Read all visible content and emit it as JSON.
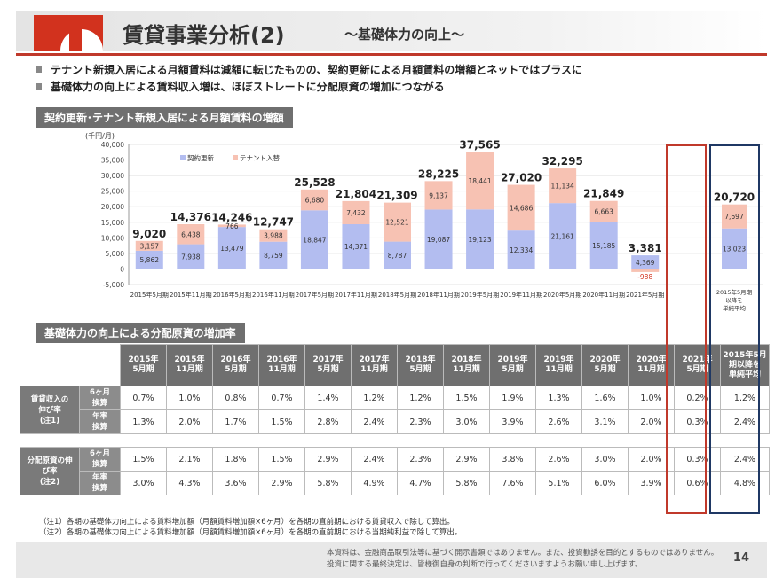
{
  "header": {
    "title": "賃貸事業分析(2)",
    "subtitle": "～基礎体力の向上～",
    "logo_color": "#d2321e"
  },
  "bullets": [
    "テナント新規入居による月額賃料は減額に転じたものの、契約更新による月額賃料の増額とネットではプラスに",
    "基礎体力の向上による賃料収入増は、ほぼストレートに分配原資の増加につながる"
  ],
  "section1_title": "契約更新･テナント新規入居による月額賃料の増額",
  "section2_title": "基礎体力の向上による分配原資の増加率",
  "chart_data": {
    "type": "bar",
    "stacked": true,
    "ylabel": "(千円/月)",
    "ylim": [
      -5000,
      40000
    ],
    "yticks": [
      -5000,
      0,
      5000,
      10000,
      15000,
      20000,
      25000,
      30000,
      35000,
      40000
    ],
    "ytick_labels": [
      "-5,000",
      "0",
      "5,000",
      "10,000",
      "15,000",
      "20,000",
      "25,000",
      "30,000",
      "35,000",
      "40,000"
    ],
    "categories": [
      "2015年5月期",
      "2015年11月期",
      "2016年5月期",
      "2016年11月期",
      "2017年5月期",
      "2017年11月期",
      "2018年5月期",
      "2018年11月期",
      "2019年5月期",
      "2019年11月期",
      "2020年5月期",
      "2020年11月期",
      "2021年5月期"
    ],
    "series": [
      {
        "name": "契約更新",
        "color": "#b3bdf0",
        "values": [
          5862,
          7938,
          13479,
          8759,
          18847,
          14371,
          8787,
          19087,
          19123,
          12334,
          21161,
          15185,
          4369
        ],
        "labels": [
          "5,862",
          "7,938",
          "13,479",
          "8,759",
          "18,847",
          "14,371",
          "8,787",
          "19,087",
          "19,123",
          "12,334",
          "21,161",
          "15,185",
          "4,369"
        ]
      },
      {
        "name": "テナント入替",
        "color": "#f7c2b3",
        "values": [
          3157,
          6438,
          766,
          3988,
          6680,
          7432,
          12521,
          9137,
          18441,
          14686,
          11134,
          6663,
          -988
        ],
        "labels": [
          "3,157",
          "6,438",
          "766",
          "3,988",
          "6,680",
          "7,432",
          "12,521",
          "9,137",
          "18,441",
          "14,686",
          "11,134",
          "6,663",
          "-988"
        ]
      }
    ],
    "totals": [
      "9,020",
      "14,376",
      "14,246",
      "12,747",
      "25,528",
      "21,804",
      "21,309",
      "28,225",
      "37,565",
      "27,020",
      "32,295",
      "21,849",
      "3,381"
    ],
    "average": {
      "label_lines": [
        "2015年5月期",
        "以降を",
        "単純平均"
      ],
      "renewal": 13023,
      "renewal_label": "13,023",
      "tenant": 7697,
      "tenant_label": "7,697",
      "total_label": "20,720"
    },
    "highlight_colors": {
      "recent": "#c0392b",
      "average": "#1f3864"
    }
  },
  "table": {
    "headers": [
      "2015年\n5月期",
      "2015年\n11月期",
      "2016年\n5月期",
      "2016年\n11月期",
      "2017年\n5月期",
      "2017年\n11月期",
      "2018年\n5月期",
      "2018年\n11月期",
      "2019年\n5月期",
      "2019年\n11月期",
      "2020年\n5月期",
      "2020年\n11月期",
      "2021年\n5月期",
      "2015年5月\n期以降を\n単純平均"
    ],
    "groups": [
      {
        "label": "賃貸収入の\n伸び率\n(注1)",
        "rows": [
          {
            "sub": "6ヶ月\n換算",
            "values": [
              "0.7%",
              "1.0%",
              "0.8%",
              "0.7%",
              "1.4%",
              "1.2%",
              "1.2%",
              "1.5%",
              "1.9%",
              "1.3%",
              "1.6%",
              "1.0%",
              "0.2%",
              "1.2%"
            ]
          },
          {
            "sub": "年率\n換算",
            "values": [
              "1.3%",
              "2.0%",
              "1.7%",
              "1.5%",
              "2.8%",
              "2.4%",
              "2.3%",
              "3.0%",
              "3.9%",
              "2.6%",
              "3.1%",
              "2.0%",
              "0.3%",
              "2.4%"
            ]
          }
        ]
      },
      {
        "label": "分配原資の伸\nび率\n(注2)",
        "rows": [
          {
            "sub": "6ヶ月\n換算",
            "values": [
              "1.5%",
              "2.1%",
              "1.8%",
              "1.5%",
              "2.9%",
              "2.4%",
              "2.3%",
              "2.9%",
              "3.8%",
              "2.6%",
              "3.0%",
              "2.0%",
              "0.3%",
              "2.4%"
            ]
          },
          {
            "sub": "年率\n換算",
            "values": [
              "3.0%",
              "4.3%",
              "3.6%",
              "2.9%",
              "5.8%",
              "4.9%",
              "4.7%",
              "5.8%",
              "7.6%",
              "5.1%",
              "6.0%",
              "3.9%",
              "0.6%",
              "4.8%"
            ]
          }
        ]
      }
    ]
  },
  "notes": [
    "（注1）各期の基礎体力向上による賃料増加額（月額賃料増加額×6ヶ月）を各期の直前期における賃貸収入で除して算出。",
    "（注2）各期の基礎体力向上による賃料増加額（月額賃料増加額×6ヶ月）を各期の直前期における当期純利益で除して算出。"
  ],
  "footer": {
    "disclaimer_1": "本資料は、金融商品取引法等に基づく開示書類ではありません。また、投資勧誘を目的とするものではありません。",
    "disclaimer_2": "投資に関する最終決定は、皆様御自身の判断で行ってくださいますようお願い申し上げます。",
    "page_number": "14"
  }
}
